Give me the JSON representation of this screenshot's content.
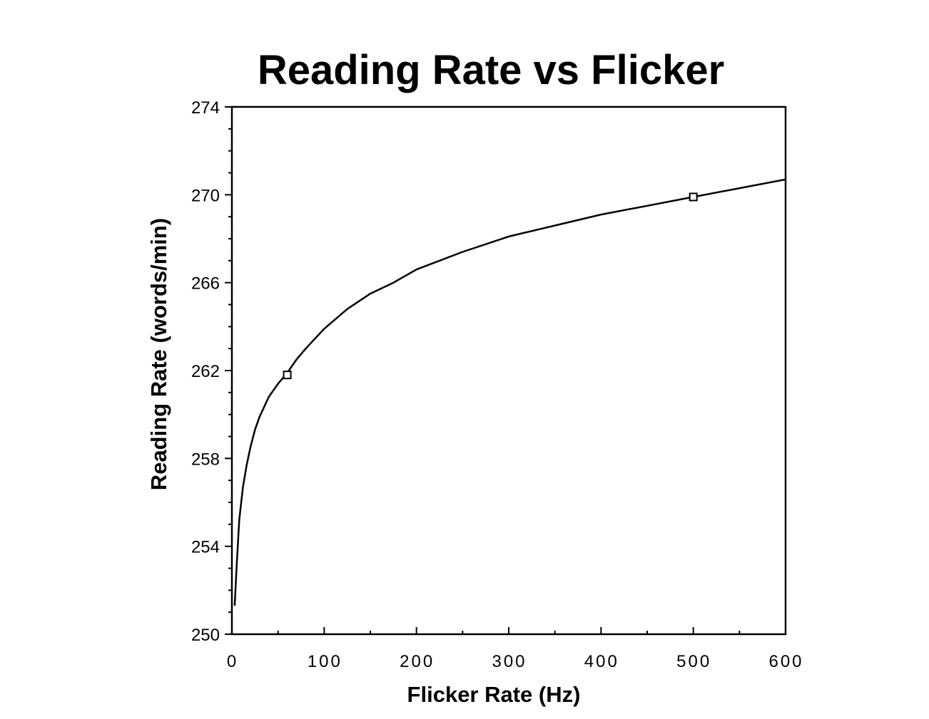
{
  "chart_data": {
    "type": "line",
    "title": "Reading Rate vs Flicker",
    "xlabel": "Flicker Rate (Hz)",
    "ylabel": "Reading Rate (words/min)",
    "xlim": [
      0,
      600
    ],
    "ylim": [
      250,
      274
    ],
    "x_ticks": [
      0,
      100,
      200,
      300,
      400,
      500,
      600
    ],
    "y_ticks": [
      250,
      254,
      258,
      262,
      266,
      270,
      274
    ],
    "x_tick_labels": [
      "0",
      "100",
      "200",
      "300",
      "400",
      "500",
      "600"
    ],
    "y_tick_labels": [
      "250",
      "254",
      "258",
      "262",
      "266",
      "270",
      "274"
    ],
    "grid": false,
    "series": [
      {
        "kind": "fit-curve",
        "x": [
          3,
          5,
          8,
          12,
          16,
          20,
          25,
          30,
          40,
          50,
          60,
          70,
          80,
          100,
          125,
          150,
          175,
          200,
          250,
          300,
          350,
          400,
          450,
          500,
          550,
          600
        ],
        "values": [
          251.3,
          253.0,
          255.2,
          256.7,
          257.7,
          258.5,
          259.3,
          259.9,
          260.8,
          261.4,
          261.9,
          262.5,
          263.0,
          263.9,
          264.8,
          265.5,
          266.0,
          266.6,
          267.4,
          268.1,
          268.6,
          269.1,
          269.5,
          269.9,
          270.3,
          270.7
        ],
        "color": "#000000"
      },
      {
        "kind": "data-points",
        "marker": "square",
        "x": [
          60,
          500
        ],
        "values": [
          261.8,
          269.9
        ],
        "color": "#000000"
      }
    ]
  }
}
